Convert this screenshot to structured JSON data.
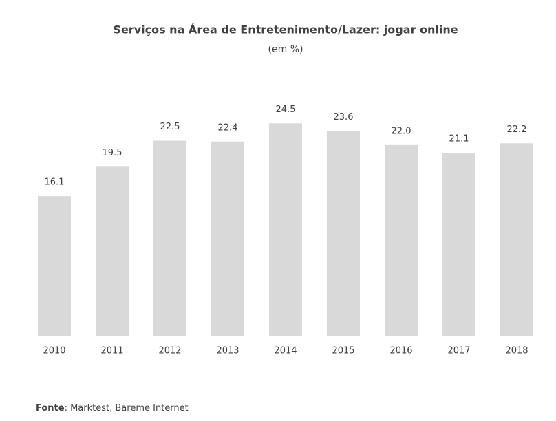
{
  "chart_data": {
    "type": "bar",
    "title": "Serviços na Área de Entretenimento/Lazer: jogar online",
    "subtitle": "(em %)",
    "categories": [
      "2010",
      "2011",
      "2012",
      "2013",
      "2014",
      "2015",
      "2016",
      "2017",
      "2018"
    ],
    "values": [
      16.1,
      19.5,
      22.5,
      22.4,
      24.5,
      23.6,
      22.0,
      21.1,
      22.2
    ],
    "value_labels": [
      "16.1",
      "19.5",
      "22.5",
      "22.4",
      "24.5",
      "23.6",
      "22.0",
      "21.1",
      "22.2"
    ],
    "color": "#d9d9d9",
    "source_label": "Fonte",
    "source_text": ": Marktest, Bareme Internet"
  }
}
